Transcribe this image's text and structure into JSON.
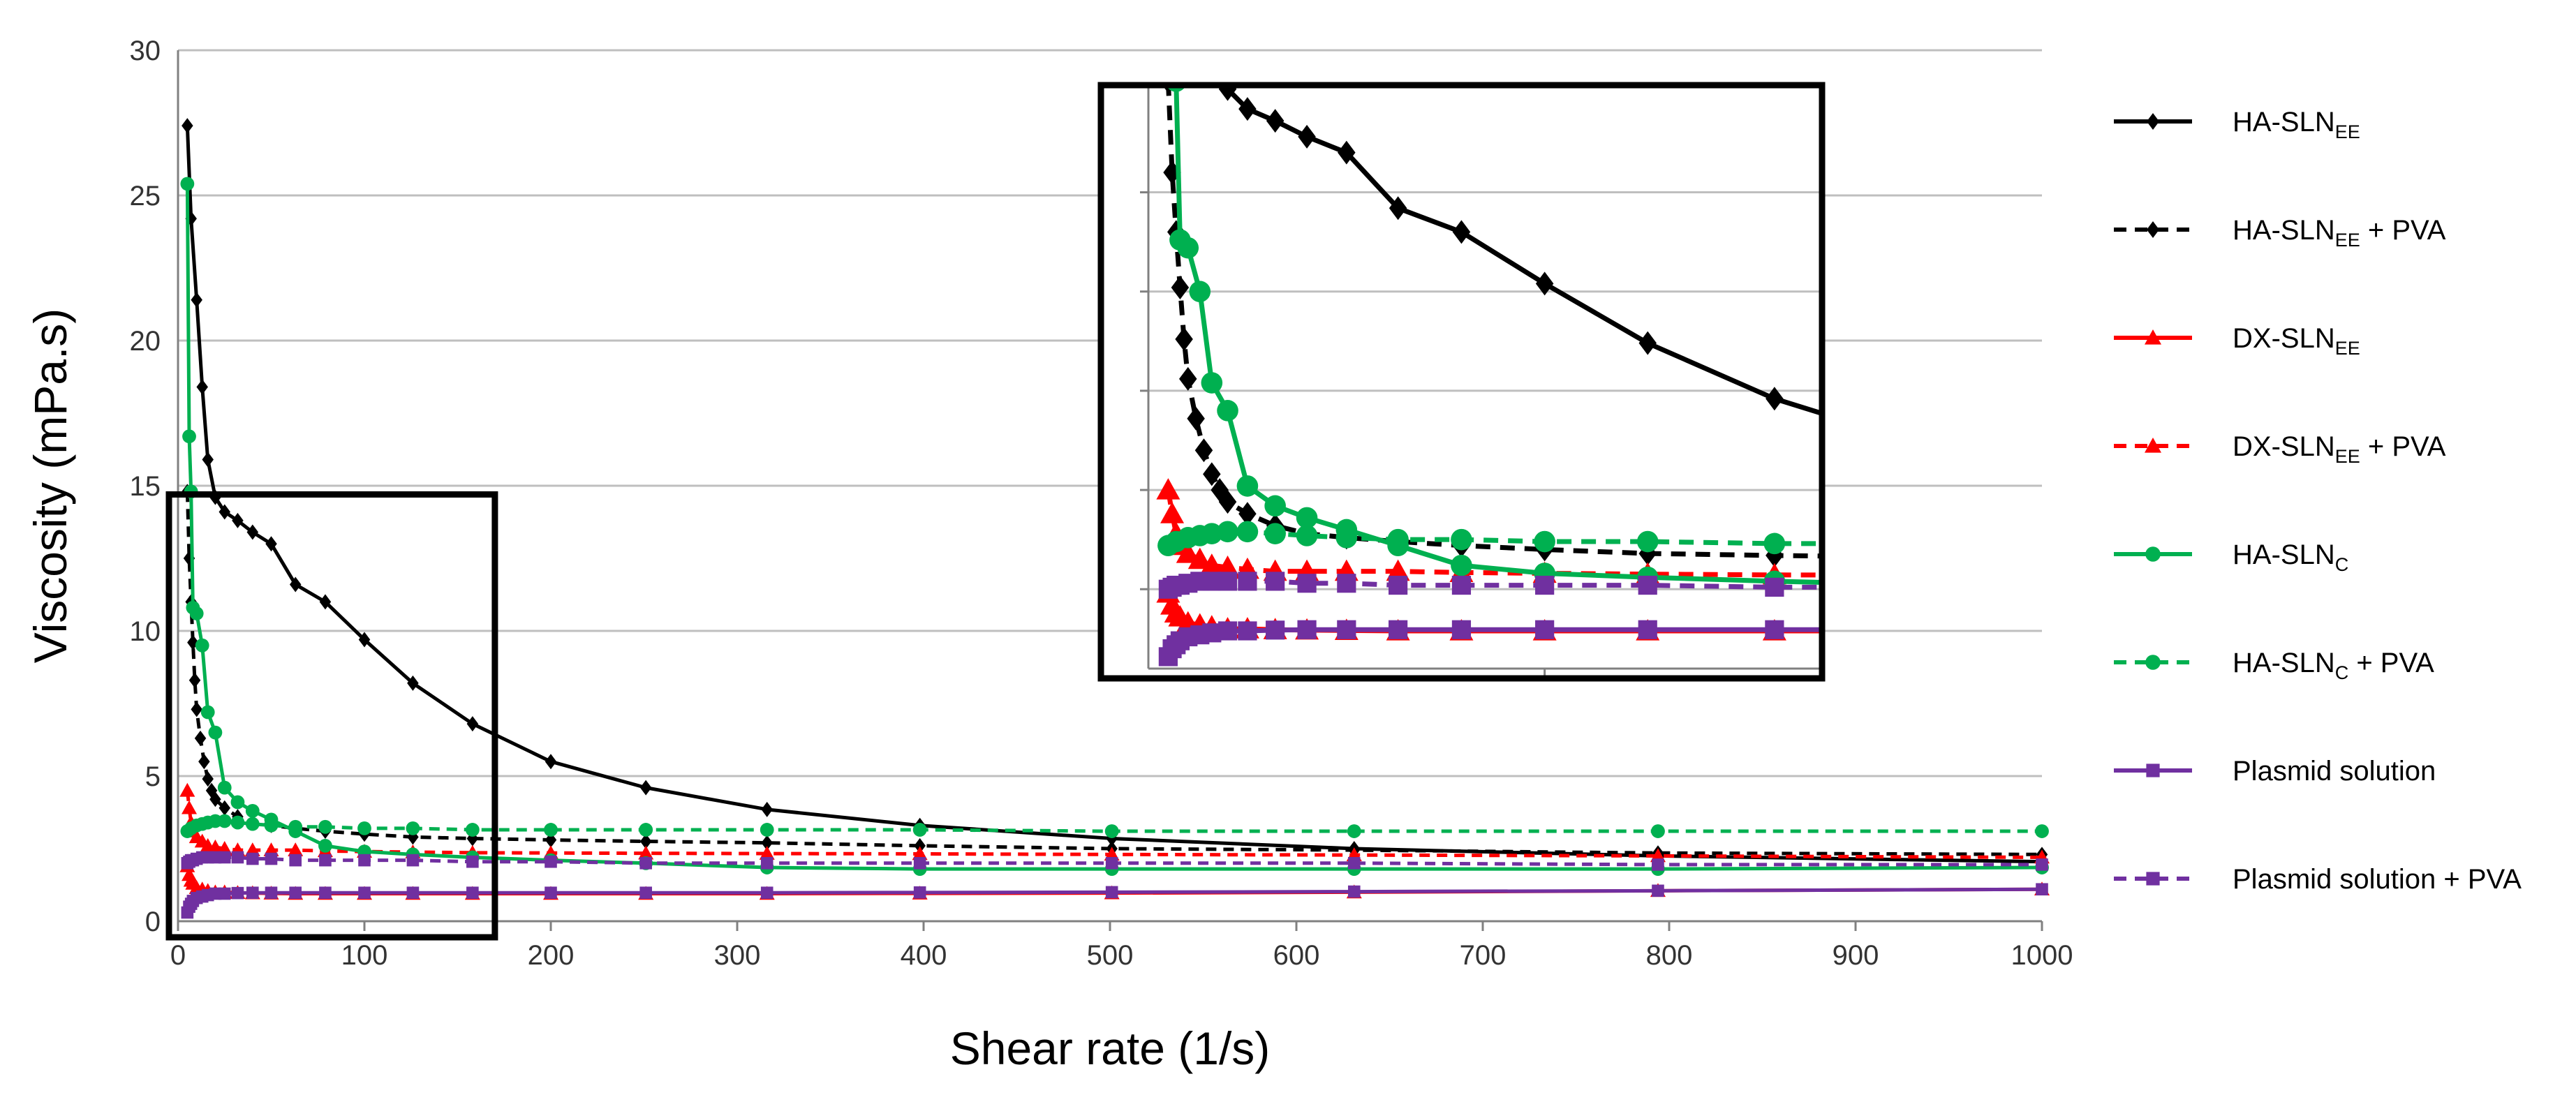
{
  "chart_data": {
    "type": "line",
    "title": "",
    "xlabel": "Shear rate (1/s)",
    "ylabel": "Viscosity (mPa.s)",
    "xlim": [
      0,
      1000
    ],
    "ylim": [
      0,
      30
    ],
    "x_ticks": [
      "0",
      "100",
      "200",
      "300",
      "400",
      "500",
      "600",
      "700",
      "800",
      "900",
      "1000"
    ],
    "y_ticks": [
      "0",
      "5",
      "10",
      "15",
      "20",
      "25",
      "30"
    ],
    "grid": true,
    "legend_position": "right",
    "inset": {
      "zoom_region": {
        "x": [
          0,
          170
        ],
        "y": [
          0,
          14.7
        ]
      }
    },
    "series": [
      {
        "name": "HA-SLN",
        "sub": "EE",
        "suffix": "",
        "color": "#000000",
        "dash": false,
        "marker": "diamond",
        "x": [
          5,
          7,
          10,
          13,
          16,
          20,
          25,
          32,
          40,
          50,
          63,
          79,
          100,
          126,
          158,
          200,
          251,
          316,
          398,
          501,
          631,
          794,
          1000
        ],
        "values": [
          27.4,
          24.2,
          21.4,
          18.4,
          15.9,
          14.6,
          14.1,
          13.8,
          13.4,
          13.0,
          11.6,
          11.0,
          9.7,
          8.2,
          6.8,
          5.5,
          4.6,
          3.85,
          3.3,
          2.85,
          2.5,
          2.25,
          2.05
        ]
      },
      {
        "name": "HA-SLN",
        "sub": "EE",
        "suffix": " + PVA",
        "color": "#000000",
        "dash": true,
        "marker": "diamond",
        "x": [
          5,
          6,
          7,
          8,
          9,
          10,
          12,
          14,
          16,
          18,
          20,
          25,
          32,
          40,
          50,
          63,
          79,
          100,
          126,
          158,
          200,
          251,
          316,
          398,
          501,
          631,
          794,
          1000
        ],
        "values": [
          14.8,
          12.5,
          11.0,
          9.6,
          8.3,
          7.3,
          6.3,
          5.5,
          4.9,
          4.5,
          4.2,
          3.9,
          3.6,
          3.4,
          3.3,
          3.2,
          3.1,
          3.0,
          2.9,
          2.85,
          2.8,
          2.75,
          2.7,
          2.6,
          2.5,
          2.45,
          2.35,
          2.3
        ]
      },
      {
        "name": "DX-SLN",
        "sub": "EE",
        "suffix": "",
        "color": "#ff0000",
        "dash": false,
        "marker": "triangle",
        "x": [
          5,
          6,
          7,
          8,
          10,
          13,
          16,
          20,
          25,
          32,
          40,
          50,
          63,
          79,
          100,
          126,
          158,
          200,
          251,
          316,
          398,
          501,
          631,
          794,
          1000
        ],
        "values": [
          1.9,
          1.6,
          1.4,
          1.3,
          1.15,
          1.1,
          1.05,
          1.0,
          1.0,
          0.98,
          0.97,
          0.96,
          0.95,
          0.95,
          0.95,
          0.95,
          0.95,
          0.95,
          0.95,
          0.95,
          0.96,
          0.97,
          1.0,
          1.05,
          1.1
        ]
      },
      {
        "name": "DX-SLN",
        "sub": "EE",
        "suffix": " + PVA",
        "color": "#ff0000",
        "dash": true,
        "marker": "triangle",
        "x": [
          5,
          6,
          7,
          8,
          10,
          13,
          16,
          20,
          25,
          32,
          40,
          50,
          63,
          79,
          100,
          126,
          158,
          200,
          251,
          316,
          398,
          501,
          631,
          794,
          1000
        ],
        "values": [
          4.5,
          3.9,
          3.4,
          3.1,
          2.9,
          2.75,
          2.6,
          2.55,
          2.5,
          2.45,
          2.45,
          2.45,
          2.45,
          2.42,
          2.4,
          2.38,
          2.36,
          2.35,
          2.34,
          2.33,
          2.32,
          2.3,
          2.28,
          2.25,
          2.2
        ]
      },
      {
        "name": "HA-SLN",
        "sub": "C",
        "suffix": "",
        "color": "#00b050",
        "dash": false,
        "marker": "circle",
        "x": [
          5,
          6,
          7,
          8,
          10,
          13,
          16,
          20,
          25,
          32,
          40,
          50,
          63,
          79,
          100,
          126,
          158,
          200,
          251,
          316,
          398,
          501,
          631,
          794,
          1000
        ],
        "values": [
          25.4,
          16.7,
          14.8,
          10.8,
          10.6,
          9.5,
          7.2,
          6.5,
          4.6,
          4.1,
          3.8,
          3.5,
          3.1,
          2.6,
          2.4,
          2.3,
          2.2,
          2.1,
          2.0,
          1.85,
          1.8,
          1.8,
          1.8,
          1.8,
          1.85
        ]
      },
      {
        "name": "HA-SLN",
        "sub": "C",
        "suffix": " + PVA",
        "color": "#00b050",
        "dash": true,
        "marker": "circle",
        "x": [
          5,
          7,
          10,
          13,
          16,
          20,
          25,
          32,
          40,
          50,
          63,
          79,
          100,
          126,
          158,
          200,
          251,
          316,
          398,
          501,
          631,
          794,
          1000
        ],
        "values": [
          3.1,
          3.2,
          3.3,
          3.35,
          3.4,
          3.45,
          3.45,
          3.4,
          3.35,
          3.3,
          3.25,
          3.25,
          3.2,
          3.2,
          3.15,
          3.15,
          3.15,
          3.15,
          3.15,
          3.1,
          3.1,
          3.1,
          3.1
        ]
      },
      {
        "name": "Plasmid solution",
        "sub": "",
        "suffix": "",
        "color": "#7030a0",
        "dash": false,
        "marker": "square",
        "x": [
          5,
          6,
          7,
          8,
          10,
          13,
          16,
          20,
          25,
          32,
          40,
          50,
          63,
          79,
          100,
          126,
          158,
          200,
          251,
          316,
          398,
          501,
          631,
          794,
          1000
        ],
        "values": [
          0.3,
          0.5,
          0.6,
          0.7,
          0.8,
          0.85,
          0.9,
          0.95,
          0.95,
          0.97,
          0.98,
          0.98,
          0.98,
          0.98,
          0.98,
          0.98,
          0.98,
          0.98,
          0.98,
          0.98,
          0.99,
          1.0,
          1.02,
          1.05,
          1.1
        ]
      },
      {
        "name": "Plasmid solution",
        "sub": "",
        "suffix": " + PVA",
        "color": "#7030a0",
        "dash": true,
        "marker": "square",
        "x": [
          5,
          6,
          7,
          8,
          10,
          13,
          16,
          20,
          25,
          32,
          40,
          50,
          63,
          79,
          100,
          126,
          158,
          200,
          251,
          316,
          398,
          501,
          631,
          794,
          1000
        ],
        "values": [
          2.0,
          2.05,
          2.1,
          2.1,
          2.15,
          2.2,
          2.2,
          2.2,
          2.2,
          2.2,
          2.15,
          2.15,
          2.1,
          2.1,
          2.1,
          2.1,
          2.05,
          2.05,
          2.0,
          2.0,
          2.0,
          2.0,
          2.0,
          1.95,
          1.95
        ]
      }
    ]
  }
}
